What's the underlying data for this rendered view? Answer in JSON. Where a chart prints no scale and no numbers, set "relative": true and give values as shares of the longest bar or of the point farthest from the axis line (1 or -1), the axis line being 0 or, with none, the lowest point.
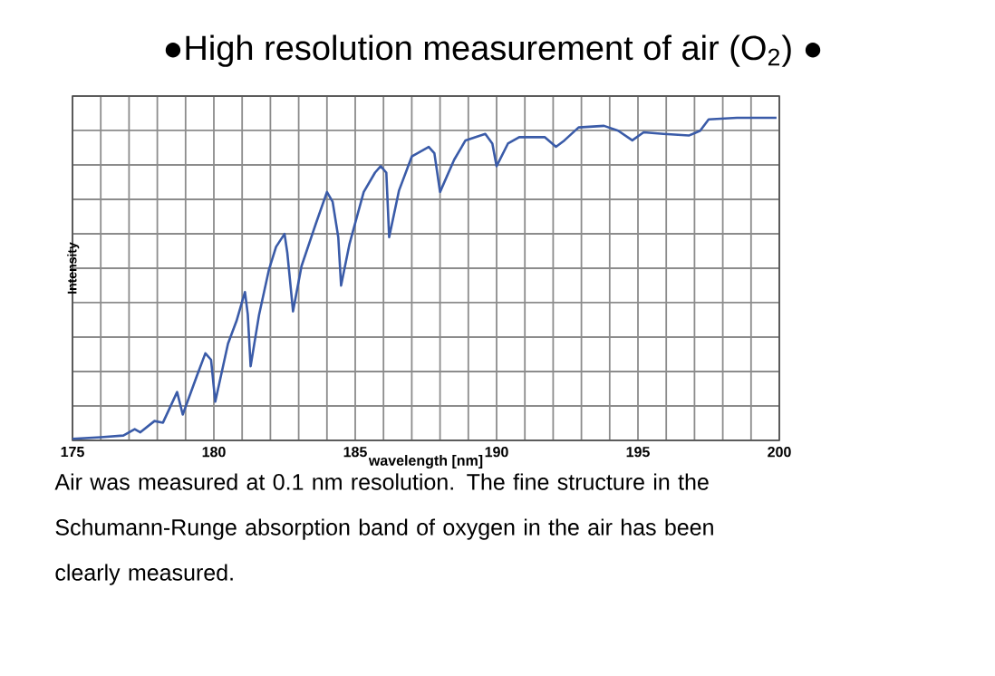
{
  "chart_data": {
    "type": "line",
    "title": "●High resolution measurement of air (O$_{2}$) ●",
    "xlabel": "wavelength [nm]",
    "ylabel": "Intensity",
    "relative": true,
    "xlim": [
      175,
      200
    ],
    "xticks": [
      175,
      180,
      185,
      190,
      195,
      200
    ],
    "grid": true,
    "annotations": [
      "Air was measured at 0.1 nm resolution. The fine structure in the Schumann-Runge absorption band of oxygen in the air has been clearly measured."
    ],
    "series": [
      {
        "color": "#3a5ba8",
        "x": [
          175,
          176,
          176.8,
          177.2,
          177.4,
          177.9,
          178.2,
          178.7,
          178.9,
          179.4,
          179.7,
          179.9,
          180.05,
          180.5,
          180.8,
          181.1,
          181.2,
          181.3,
          181.6,
          181.95,
          182.2,
          182.5,
          182.6,
          182.8,
          183.1,
          183.6,
          184.0,
          184.2,
          184.4,
          184.5,
          184.8,
          185.3,
          185.7,
          185.9,
          186.1,
          186.2,
          186.55,
          187.0,
          187.6,
          187.8,
          188.0,
          188.5,
          188.9,
          189.6,
          189.85,
          190.0,
          190.4,
          190.8,
          191.7,
          192.1,
          192.4,
          192.9,
          193.8,
          194.3,
          194.8,
          195.2,
          195.9,
          196.8,
          197.2,
          197.5,
          198.5,
          199.9
        ],
        "values": [
          0.005,
          0.01,
          0.015,
          0.035,
          0.025,
          0.06,
          0.055,
          0.15,
          0.08,
          0.2,
          0.27,
          0.25,
          0.12,
          0.3,
          0.37,
          0.46,
          0.39,
          0.23,
          0.39,
          0.53,
          0.6,
          0.64,
          0.58,
          0.4,
          0.54,
          0.67,
          0.77,
          0.74,
          0.63,
          0.48,
          0.61,
          0.77,
          0.83,
          0.85,
          0.83,
          0.63,
          0.775,
          0.88,
          0.91,
          0.89,
          0.77,
          0.87,
          0.93,
          0.95,
          0.92,
          0.85,
          0.92,
          0.94,
          0.94,
          0.91,
          0.93,
          0.97,
          0.975,
          0.96,
          0.93,
          0.955,
          0.95,
          0.945,
          0.96,
          0.995,
          1.0,
          1.0
        ]
      }
    ]
  }
}
